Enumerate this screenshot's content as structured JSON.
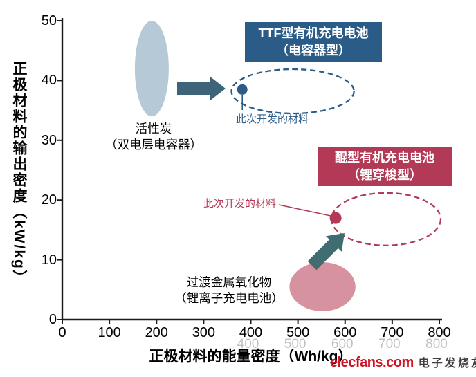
{
  "chart_data": {
    "type": "scatter",
    "title": "",
    "xlabel": "正极材料的能量密度（Wh/kg）",
    "ylabel": "正极材料的输出密度（kW/kg）",
    "xlim": [
      0,
      800
    ],
    "ylim": [
      0,
      50
    ],
    "x_ticks": [
      0,
      100,
      200,
      300,
      400,
      500,
      600,
      700,
      800
    ],
    "y_ticks": [
      0,
      10,
      20,
      30,
      40,
      50
    ],
    "grid": false,
    "legend_position": "none",
    "regions": [
      {
        "id": "activated-carbon",
        "style": "filled",
        "color": "#b5c9d6",
        "label1": "活性炭",
        "label2": "（双电层电容器）",
        "x": 190,
        "y": 42,
        "rx": 36,
        "ry": 8
      },
      {
        "id": "ttf-organic-battery",
        "style": "dashed",
        "color": "#2b5c88",
        "label1": "TTF型有机充电电池",
        "label2": "（电容器型）",
        "x": 489,
        "y": 38.2,
        "rx": 130,
        "ry": 3.7,
        "point": {
          "x": 382,
          "y": 38.5,
          "label": "此次开发的材料"
        }
      },
      {
        "id": "quinone-organic-battery",
        "style": "dashed",
        "color": "#b23a56",
        "label1": "醌型有机充电电池",
        "label2": "（锂穿梭型）",
        "x": 687,
        "y": 16.8,
        "rx": 116,
        "ry": 4.4,
        "point": {
          "x": 580,
          "y": 17,
          "label": "此次开发的材料"
        }
      },
      {
        "id": "transition-metal-oxide",
        "style": "filled",
        "color": "#d6929e",
        "label1": "过渡金属氧化物",
        "label2": "（锂离子充电电池）",
        "x": 552,
        "y": 5.5,
        "rx": 70,
        "ry": 4.1
      }
    ]
  },
  "colors": {
    "axis": "#1a1a1a",
    "blue": "#2b5c88",
    "red": "#b23a56",
    "arrow_blue": "#3d6478",
    "arrow_teal": "#3f6d72",
    "ghost_tick": "#8f8f8f"
  },
  "watermark": {
    "text_en": "elecfans.com",
    "text_cn": "电子发烧友"
  }
}
